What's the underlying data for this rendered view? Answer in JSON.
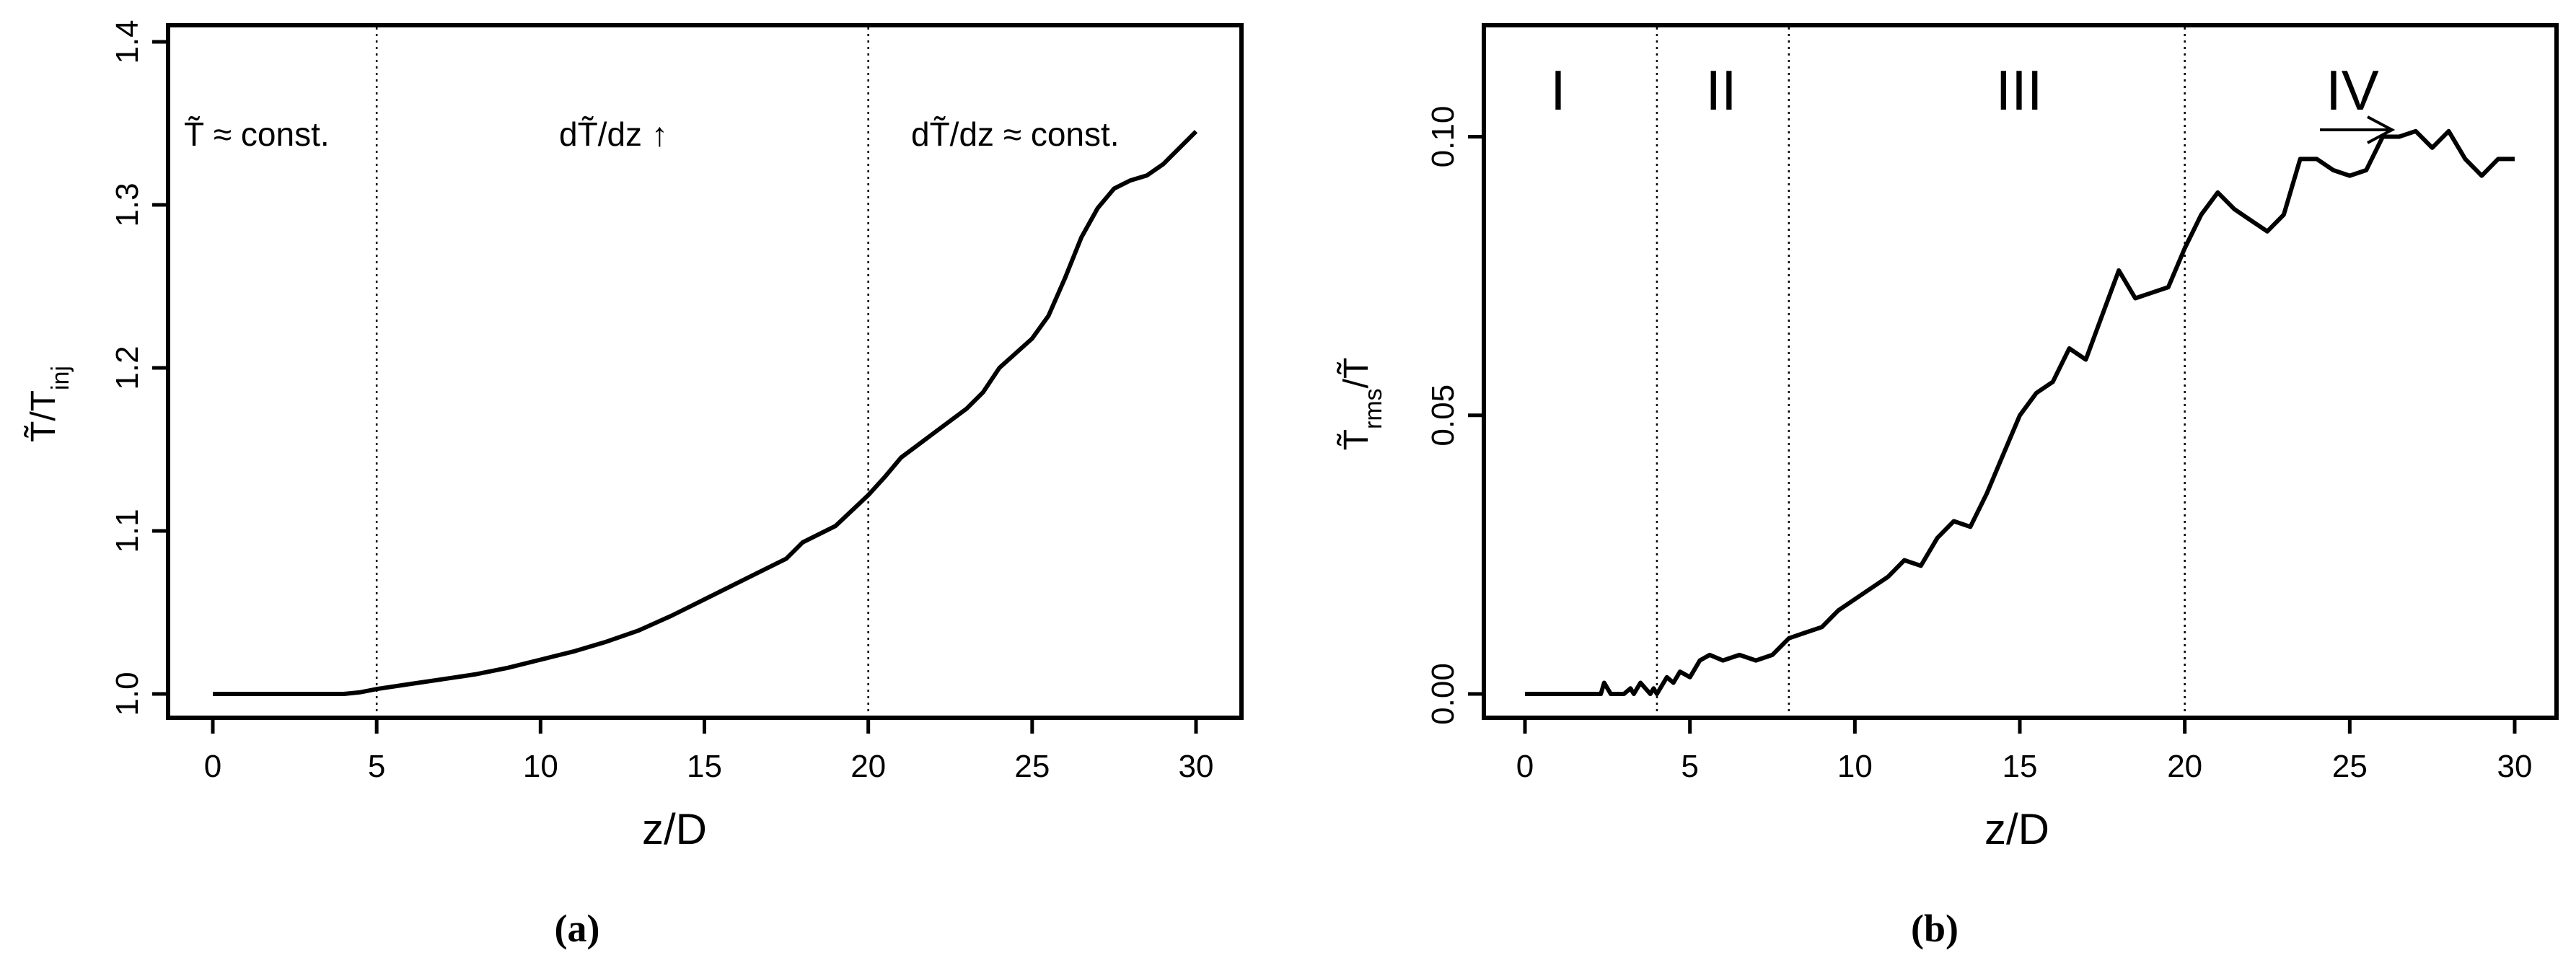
{
  "chart_data": [
    {
      "type": "line",
      "panel_label": "(a)",
      "xlabel": "z/D",
      "ylabel": "T̃/T_inj",
      "ylabel_main": "T̃/T",
      "ylabel_sub": "inj",
      "xlim": [
        0,
        30
      ],
      "ylim": [
        1.0,
        1.4
      ],
      "x_ticks": [
        0,
        5,
        10,
        15,
        20,
        25,
        30
      ],
      "x_tick_labels": [
        "0",
        "5",
        "10",
        "15",
        "20",
        "25",
        "30"
      ],
      "y_ticks": [
        1.0,
        1.1,
        1.2,
        1.3,
        1.4
      ],
      "y_tick_labels": [
        "1.0",
        "1.1",
        "1.2",
        "1.3",
        "1.4"
      ],
      "vlines": [
        5,
        20
      ],
      "annotations": [
        "T̃ ≈ const.",
        "dT̃/dz ↑",
        "dT̃/dz ≈ const."
      ],
      "grid": false,
      "series": [
        {
          "x": [
            0,
            1,
            2,
            3,
            4,
            4.5,
            5,
            6,
            7,
            8,
            9,
            10,
            11,
            12,
            13,
            14,
            15,
            16,
            17,
            17.5,
            18,
            19,
            20,
            20.5,
            21,
            22,
            23,
            23.5,
            24,
            25,
            25.5,
            26,
            26.5,
            27,
            27.5,
            28,
            28.5,
            29,
            29.5,
            30
          ],
          "y": [
            1.0,
            1.0,
            1.0,
            1.0,
            1.0,
            1.001,
            1.003,
            1.006,
            1.009,
            1.012,
            1.016,
            1.021,
            1.026,
            1.032,
            1.039,
            1.048,
            1.058,
            1.068,
            1.078,
            1.083,
            1.093,
            1.103,
            1.122,
            1.133,
            1.145,
            1.16,
            1.175,
            1.185,
            1.2,
            1.218,
            1.232,
            1.255,
            1.28,
            1.298,
            1.31,
            1.315,
            1.318,
            1.325,
            1.335,
            1.345
          ]
        }
      ]
    },
    {
      "type": "line",
      "panel_label": "(b)",
      "xlabel": "z/D",
      "ylabel": "T̃_rms/T̃",
      "ylabel_main_a": "T̃",
      "ylabel_sub": "rms",
      "ylabel_main_b": "/T̃",
      "xlim": [
        0,
        30
      ],
      "ylim": [
        0.0,
        0.12
      ],
      "x_ticks": [
        0,
        5,
        10,
        15,
        20,
        25,
        30
      ],
      "x_tick_labels": [
        "0",
        "5",
        "10",
        "15",
        "20",
        "25",
        "30"
      ],
      "y_ticks": [
        0.0,
        0.05,
        0.1
      ],
      "y_tick_labels": [
        "0.00",
        "0.05",
        "0.10"
      ],
      "vlines": [
        4,
        8,
        20
      ],
      "annotations": [
        "I",
        "II",
        "III",
        "IV"
      ],
      "grid": false,
      "series": [
        {
          "x": [
            0,
            1,
            2,
            2.3,
            2.4,
            2.6,
            3,
            3.2,
            3.3,
            3.5,
            3.8,
            3.9,
            4.0,
            4.3,
            4.5,
            4.7,
            5.0,
            5.3,
            5.6,
            6.0,
            6.5,
            7.0,
            7.5,
            8.0,
            8.5,
            9.0,
            9.5,
            10.0,
            10.5,
            11.0,
            11.5,
            12.0,
            12.5,
            13.0,
            13.5,
            14.0,
            14.5,
            15.0,
            15.5,
            16.0,
            16.5,
            17.0,
            17.5,
            18.0,
            18.5,
            19.0,
            19.5,
            20.0,
            20.5,
            21.0,
            21.5,
            22.0,
            22.5,
            23.0,
            23.5,
            24.0,
            24.5,
            25.0,
            25.5,
            26.0,
            26.5,
            27.0,
            27.5,
            28.0,
            28.5,
            29.0,
            29.5,
            30.0
          ],
          "y": [
            0.0,
            0.0,
            0.0,
            0.0,
            0.002,
            0.0,
            0.0,
            0.001,
            0.0,
            0.002,
            0.0,
            0.001,
            0.0,
            0.003,
            0.002,
            0.004,
            0.003,
            0.006,
            0.007,
            0.006,
            0.007,
            0.006,
            0.007,
            0.01,
            0.011,
            0.012,
            0.015,
            0.017,
            0.019,
            0.021,
            0.024,
            0.023,
            0.028,
            0.031,
            0.03,
            0.036,
            0.043,
            0.05,
            0.054,
            0.056,
            0.062,
            0.06,
            0.068,
            0.076,
            0.071,
            0.072,
            0.073,
            0.08,
            0.086,
            0.09,
            0.087,
            0.085,
            0.083,
            0.086,
            0.096,
            0.096,
            0.094,
            0.093,
            0.094,
            0.1,
            0.1,
            0.101,
            0.098,
            0.101,
            0.096,
            0.093,
            0.096,
            0.096
          ]
        }
      ]
    }
  ]
}
